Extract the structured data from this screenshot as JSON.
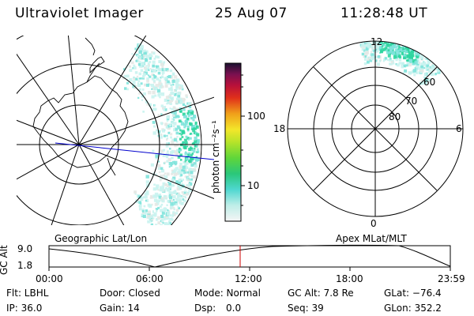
{
  "header": {
    "instrument": "Ultraviolet Imager",
    "date": "25 Aug 07",
    "time": "11:28:48 UT"
  },
  "left_panel": {
    "caption": "Geographic Lat/Lon"
  },
  "right_panel": {
    "caption": "Apex MLat/MLT",
    "mlt_labels": {
      "top": "12",
      "left": "18",
      "right": "6",
      "bottom": "0"
    },
    "lat_labels": [
      "60",
      "70",
      "80"
    ]
  },
  "colorbar": {
    "unit_label": "photon cm⁻²s⁻¹",
    "ticks": [
      "100",
      "10"
    ]
  },
  "altitude_plot": {
    "ylabel": "GC Alt",
    "yticks": [
      "9.0",
      "1.8"
    ],
    "xticks": [
      "00:00",
      "06:00",
      "12:00",
      "18:00",
      "23:59"
    ]
  },
  "status": {
    "row1": {
      "flt": "Flt: LBHL",
      "door": "Door: Closed",
      "mode": "Mode: Normal",
      "gc_alt": "GC Alt: 7.8 Re",
      "glat": "GLat: −76.4"
    },
    "row2": {
      "ip": "IP: 36.0",
      "gain": "Gain: 14",
      "dsp_label": "Dsp:",
      "dsp_value": "0.0",
      "seq": "Seq: 39",
      "glon": "GLon: 352.2"
    }
  },
  "colors": {
    "aurora_light": "#c9f3ef",
    "aurora_mid": "#7fe3dc",
    "aurora_strong": "#2fd6a0",
    "track_line": "#0000cc",
    "time_marker": "#cc0000"
  }
}
